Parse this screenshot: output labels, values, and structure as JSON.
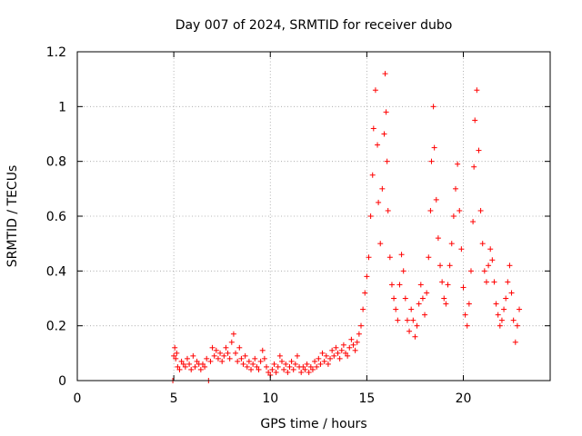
{
  "chart_data": {
    "type": "scatter",
    "title": "Day 007 of 2024, SRMTID for receiver dubo",
    "xlabel": "GPS time / hours",
    "ylabel": "SRMTID / TECUs",
    "xlim": [
      0,
      24.5
    ],
    "ylim": [
      0,
      1.2
    ],
    "x_ticks": [
      0,
      5,
      10,
      15,
      20
    ],
    "x_tick_labels": [
      "0",
      "5",
      "10",
      "15",
      "20"
    ],
    "y_ticks": [
      0,
      0.2,
      0.4,
      0.6,
      0.8,
      1.0,
      1.2
    ],
    "y_tick_labels": [
      "0",
      "0.2",
      "0.4",
      "0.6",
      "0.8",
      "1",
      "1.2"
    ],
    "grid": true,
    "marker": "+",
    "series": [
      {
        "name": "SRMTID",
        "color": "#ff0000",
        "points": [
          [
            4.95,
            0.0
          ],
          [
            6.8,
            0.0
          ],
          [
            5.0,
            0.09
          ],
          [
            5.05,
            0.12
          ],
          [
            5.1,
            0.08
          ],
          [
            5.15,
            0.1
          ],
          [
            5.2,
            0.05
          ],
          [
            5.3,
            0.04
          ],
          [
            5.4,
            0.07
          ],
          [
            5.5,
            0.06
          ],
          [
            5.6,
            0.05
          ],
          [
            5.7,
            0.08
          ],
          [
            5.8,
            0.06
          ],
          [
            5.9,
            0.04
          ],
          [
            6.0,
            0.09
          ],
          [
            6.1,
            0.05
          ],
          [
            6.2,
            0.07
          ],
          [
            6.3,
            0.06
          ],
          [
            6.4,
            0.04
          ],
          [
            6.5,
            0.06
          ],
          [
            6.6,
            0.05
          ],
          [
            6.7,
            0.08
          ],
          [
            6.9,
            0.07
          ],
          [
            7.0,
            0.12
          ],
          [
            7.1,
            0.09
          ],
          [
            7.2,
            0.11
          ],
          [
            7.3,
            0.08
          ],
          [
            7.4,
            0.1
          ],
          [
            7.5,
            0.07
          ],
          [
            7.6,
            0.09
          ],
          [
            7.7,
            0.12
          ],
          [
            7.8,
            0.1
          ],
          [
            7.9,
            0.08
          ],
          [
            8.0,
            0.14
          ],
          [
            8.1,
            0.17
          ],
          [
            8.2,
            0.1
          ],
          [
            8.3,
            0.07
          ],
          [
            8.4,
            0.12
          ],
          [
            8.5,
            0.08
          ],
          [
            8.6,
            0.06
          ],
          [
            8.7,
            0.09
          ],
          [
            8.8,
            0.05
          ],
          [
            8.9,
            0.07
          ],
          [
            9.0,
            0.04
          ],
          [
            9.1,
            0.06
          ],
          [
            9.2,
            0.08
          ],
          [
            9.3,
            0.05
          ],
          [
            9.4,
            0.04
          ],
          [
            9.5,
            0.07
          ],
          [
            9.6,
            0.11
          ],
          [
            9.7,
            0.08
          ],
          [
            9.8,
            0.05
          ],
          [
            9.9,
            0.03
          ],
          [
            10.0,
            0.02
          ],
          [
            10.1,
            0.04
          ],
          [
            10.2,
            0.06
          ],
          [
            10.3,
            0.03
          ],
          [
            10.4,
            0.05
          ],
          [
            10.5,
            0.09
          ],
          [
            10.6,
            0.07
          ],
          [
            10.7,
            0.04
          ],
          [
            10.8,
            0.06
          ],
          [
            10.9,
            0.03
          ],
          [
            11.0,
            0.05
          ],
          [
            11.1,
            0.07
          ],
          [
            11.2,
            0.04
          ],
          [
            11.3,
            0.06
          ],
          [
            11.4,
            0.09
          ],
          [
            11.5,
            0.05
          ],
          [
            11.6,
            0.03
          ],
          [
            11.7,
            0.05
          ],
          [
            11.8,
            0.04
          ],
          [
            11.9,
            0.06
          ],
          [
            12.0,
            0.03
          ],
          [
            12.1,
            0.05
          ],
          [
            12.2,
            0.04
          ],
          [
            12.3,
            0.07
          ],
          [
            12.4,
            0.05
          ],
          [
            12.5,
            0.08
          ],
          [
            12.6,
            0.06
          ],
          [
            12.7,
            0.1
          ],
          [
            12.8,
            0.07
          ],
          [
            12.9,
            0.09
          ],
          [
            13.0,
            0.06
          ],
          [
            13.1,
            0.08
          ],
          [
            13.2,
            0.11
          ],
          [
            13.3,
            0.09
          ],
          [
            13.4,
            0.12
          ],
          [
            13.5,
            0.1
          ],
          [
            13.6,
            0.08
          ],
          [
            13.7,
            0.11
          ],
          [
            13.8,
            0.13
          ],
          [
            13.9,
            0.1
          ],
          [
            14.0,
            0.09
          ],
          [
            14.1,
            0.12
          ],
          [
            14.2,
            0.15
          ],
          [
            14.3,
            0.13
          ],
          [
            14.4,
            0.11
          ],
          [
            14.5,
            0.14
          ],
          [
            14.6,
            0.17
          ],
          [
            14.7,
            0.2
          ],
          [
            14.8,
            0.26
          ],
          [
            14.9,
            0.32
          ],
          [
            15.0,
            0.38
          ],
          [
            15.1,
            0.45
          ],
          [
            15.2,
            0.6
          ],
          [
            15.3,
            0.75
          ],
          [
            15.35,
            0.92
          ],
          [
            15.45,
            1.06
          ],
          [
            15.55,
            0.86
          ],
          [
            15.6,
            0.65
          ],
          [
            15.7,
            0.5
          ],
          [
            15.8,
            0.7
          ],
          [
            15.9,
            0.9
          ],
          [
            15.95,
            1.12
          ],
          [
            16.0,
            0.98
          ],
          [
            16.05,
            0.8
          ],
          [
            16.1,
            0.62
          ],
          [
            16.2,
            0.45
          ],
          [
            16.3,
            0.35
          ],
          [
            16.4,
            0.3
          ],
          [
            16.5,
            0.26
          ],
          [
            16.6,
            0.22
          ],
          [
            16.7,
            0.35
          ],
          [
            16.8,
            0.46
          ],
          [
            16.9,
            0.4
          ],
          [
            17.0,
            0.3
          ],
          [
            17.1,
            0.22
          ],
          [
            17.2,
            0.18
          ],
          [
            17.3,
            0.26
          ],
          [
            17.4,
            0.22
          ],
          [
            17.5,
            0.16
          ],
          [
            17.6,
            0.2
          ],
          [
            17.7,
            0.28
          ],
          [
            17.8,
            0.35
          ],
          [
            17.9,
            0.3
          ],
          [
            18.0,
            0.24
          ],
          [
            18.1,
            0.32
          ],
          [
            18.2,
            0.45
          ],
          [
            18.3,
            0.62
          ],
          [
            18.35,
            0.8
          ],
          [
            18.45,
            1.0
          ],
          [
            18.5,
            0.85
          ],
          [
            18.6,
            0.66
          ],
          [
            18.7,
            0.52
          ],
          [
            18.8,
            0.42
          ],
          [
            18.9,
            0.36
          ],
          [
            19.0,
            0.3
          ],
          [
            19.1,
            0.28
          ],
          [
            19.2,
            0.35
          ],
          [
            19.3,
            0.42
          ],
          [
            19.4,
            0.5
          ],
          [
            19.5,
            0.6
          ],
          [
            19.6,
            0.7
          ],
          [
            19.7,
            0.79
          ],
          [
            19.8,
            0.62
          ],
          [
            19.9,
            0.48
          ],
          [
            20.0,
            0.34
          ],
          [
            20.1,
            0.24
          ],
          [
            20.2,
            0.2
          ],
          [
            20.3,
            0.28
          ],
          [
            20.4,
            0.4
          ],
          [
            20.5,
            0.58
          ],
          [
            20.55,
            0.78
          ],
          [
            20.6,
            0.95
          ],
          [
            20.7,
            1.06
          ],
          [
            20.8,
            0.84
          ],
          [
            20.9,
            0.62
          ],
          [
            21.0,
            0.5
          ],
          [
            21.1,
            0.4
          ],
          [
            21.2,
            0.36
          ],
          [
            21.3,
            0.42
          ],
          [
            21.4,
            0.48
          ],
          [
            21.5,
            0.44
          ],
          [
            21.6,
            0.36
          ],
          [
            21.7,
            0.28
          ],
          [
            21.8,
            0.24
          ],
          [
            21.9,
            0.2
          ],
          [
            22.0,
            0.22
          ],
          [
            22.1,
            0.26
          ],
          [
            22.2,
            0.3
          ],
          [
            22.3,
            0.36
          ],
          [
            22.4,
            0.42
          ],
          [
            22.5,
            0.32
          ],
          [
            22.6,
            0.22
          ],
          [
            22.7,
            0.14
          ],
          [
            22.8,
            0.2
          ],
          [
            22.9,
            0.26
          ]
        ]
      }
    ]
  }
}
